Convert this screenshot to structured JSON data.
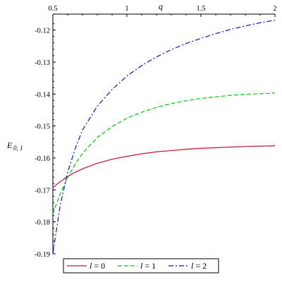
{
  "chart_data": {
    "type": "line",
    "xlabel": "q",
    "ylabel": "E",
    "ylabel_sub": "0, 1",
    "xlim": [
      0.5,
      2
    ],
    "ylim": [
      -0.19,
      -0.115
    ],
    "x_ticks": [
      0.5,
      1,
      1.5,
      2
    ],
    "x_tick_labels": [
      "0.5",
      "1",
      "1.5",
      "2"
    ],
    "y_ticks": [
      -0.12,
      -0.13,
      -0.14,
      -0.15,
      -0.16,
      -0.17,
      -0.18,
      -0.19
    ],
    "y_tick_labels": [
      "-0.12",
      "-0.13",
      "-0.14",
      "-0.15",
      "-0.16",
      "-0.17",
      "-0.18",
      "-0.19"
    ],
    "grid": false,
    "legend_position": "bottom-center",
    "series": [
      {
        "name": "l = 0",
        "legend_var": "l",
        "legend_value": "= 0",
        "color": "#c8102e",
        "dash": "solid",
        "x": [
          0.5,
          0.55,
          0.6,
          0.65,
          0.7,
          0.8,
          0.9,
          1.0,
          1.1,
          1.2,
          1.3,
          1.4,
          1.5,
          1.6,
          1.7,
          1.8,
          1.9,
          2.0
        ],
        "y": [
          -0.1693,
          -0.1674,
          -0.1658,
          -0.1645,
          -0.1634,
          -0.1617,
          -0.1604,
          -0.1595,
          -0.1587,
          -0.1581,
          -0.1577,
          -0.1573,
          -0.157,
          -0.1568,
          -0.1566,
          -0.1564,
          -0.1563,
          -0.1562
        ]
      },
      {
        "name": "l = 1",
        "legend_var": "l",
        "legend_value": "= 1",
        "color": "#00d000",
        "dash": "dashed",
        "x": [
          0.5,
          0.55,
          0.6,
          0.65,
          0.7,
          0.8,
          0.9,
          1.0,
          1.1,
          1.2,
          1.3,
          1.4,
          1.5,
          1.6,
          1.7,
          1.8,
          1.9,
          2.0
        ],
        "y": [
          -0.1775,
          -0.1712,
          -0.1661,
          -0.162,
          -0.1586,
          -0.1536,
          -0.1502,
          -0.1476,
          -0.1457,
          -0.1442,
          -0.143,
          -0.1421,
          -0.1414,
          -0.1409,
          -0.1404,
          -0.1401,
          -0.1399,
          -0.1397
        ]
      },
      {
        "name": "l = 2",
        "legend_var": "l",
        "legend_value": "= 2",
        "color": "#1010c8",
        "dash": "dashdot",
        "x": [
          0.5,
          0.55,
          0.6,
          0.65,
          0.7,
          0.8,
          0.9,
          1.0,
          1.1,
          1.2,
          1.3,
          1.4,
          1.5,
          1.6,
          1.7,
          1.8,
          1.9,
          2.0
        ],
        "y": [
          -0.1898,
          -0.1747,
          -0.1645,
          -0.1572,
          -0.1513,
          -0.1438,
          -0.1386,
          -0.1344,
          -0.1311,
          -0.1284,
          -0.1261,
          -0.1242,
          -0.1226,
          -0.1211,
          -0.1198,
          -0.1187,
          -0.1177,
          -0.1169
        ]
      }
    ]
  }
}
